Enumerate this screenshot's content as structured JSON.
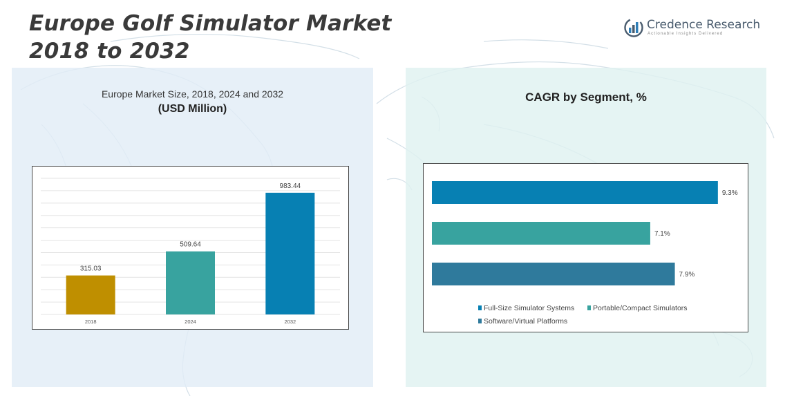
{
  "header": {
    "title_line1": "Europe Golf Simulator Market",
    "title_line2": "2018 to 2032"
  },
  "logo": {
    "name": "Credence Research",
    "tagline": "Actionable Insights Delivered",
    "icon": "credence-logo-icon"
  },
  "left_panel": {
    "subtitle": "Europe Market Size, 2018, 2024 and 2032",
    "unit": "(USD Million)"
  },
  "right_panel": {
    "title": "CAGR by Segment, %"
  },
  "colors": {
    "bar_2018": "#bf8f00",
    "bar_2024": "#38a39f",
    "bar_2032": "#0780b3",
    "full_size": "#0780b3",
    "portable": "#38a39f",
    "software": "#2f7a9c"
  },
  "chart_data": [
    {
      "type": "bar",
      "categories": [
        "2018",
        "2024",
        "2032"
      ],
      "values": [
        315.03,
        509.64,
        983.44
      ],
      "value_labels": [
        "315.03",
        "509.64",
        "983.44"
      ],
      "ylim": [
        0,
        1100
      ],
      "grid": true,
      "orientation": "vertical"
    },
    {
      "type": "bar",
      "orientation": "horizontal",
      "series": [
        {
          "name": "Full-Size Simulator Systems",
          "value": 9.3,
          "label": "9.3%",
          "color": "#0780b3"
        },
        {
          "name": "Portable/Compact Simulators",
          "value": 7.1,
          "label": "7.1%",
          "color": "#38a39f"
        },
        {
          "name": "Software/Virtual Platforms",
          "value": 7.9,
          "label": "7.9%",
          "color": "#2f7a9c"
        }
      ],
      "xlim": [
        0,
        10
      ],
      "grid": false,
      "legend": "bottom"
    }
  ]
}
